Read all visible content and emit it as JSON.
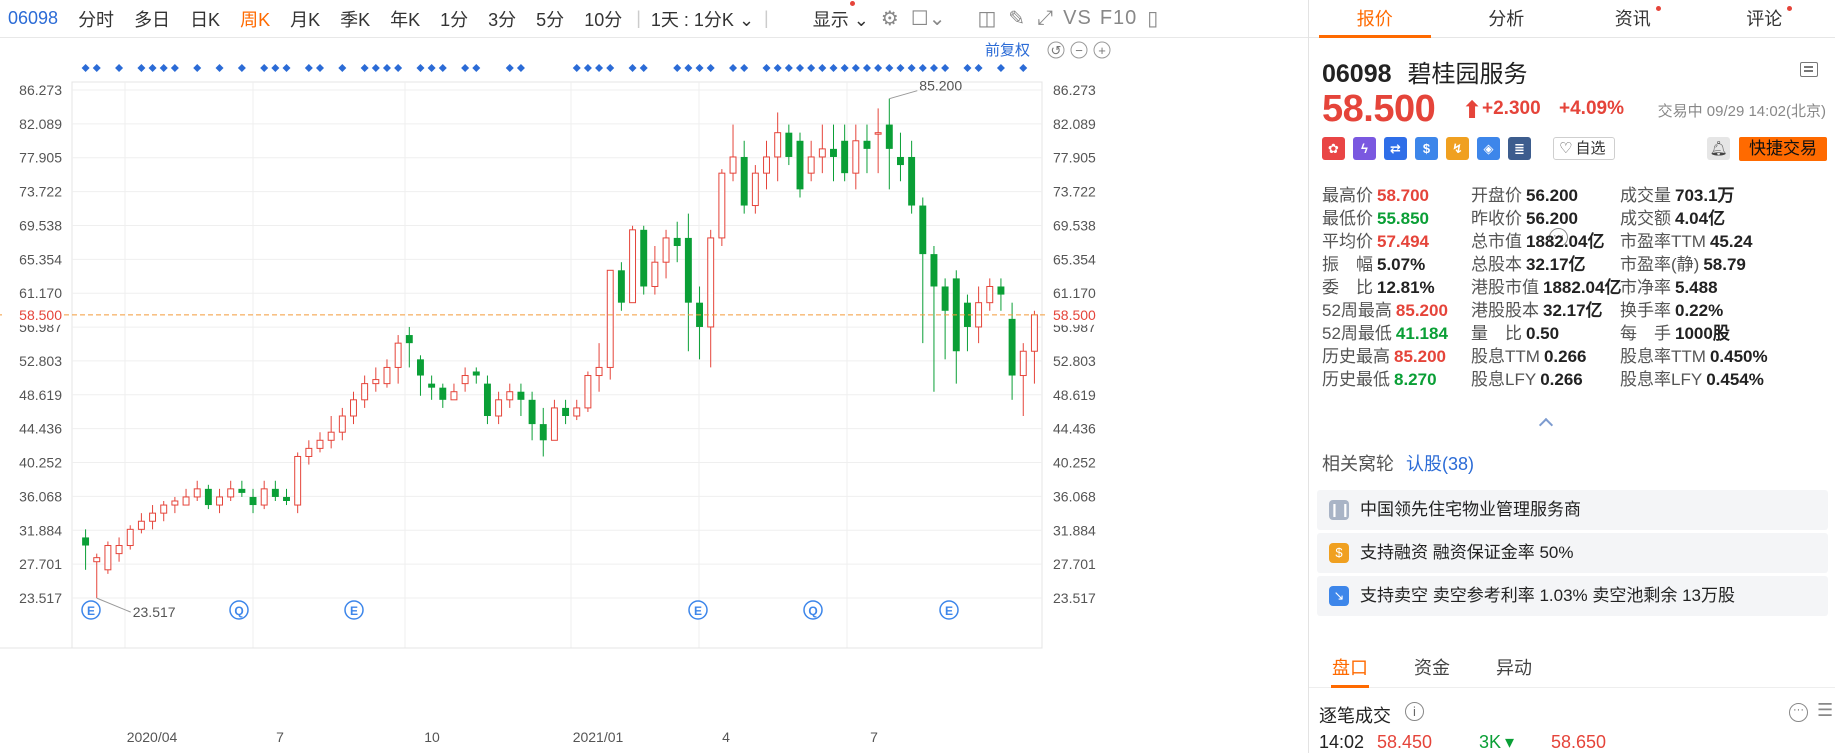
{
  "toolbar": {
    "code": "06098",
    "periods": [
      "分时",
      "多日",
      "日K",
      "周K",
      "月K",
      "季K",
      "年K",
      "1分",
      "3分",
      "5分",
      "10分"
    ],
    "active_period": "周K",
    "multi_day": "1天 : 1分K",
    "display": "显示",
    "vs": "VS",
    "f10": "F10"
  },
  "chart_controls": {
    "adjust": "前复权"
  },
  "chart_data": {
    "type": "candlestick",
    "y_ticks": [
      "86.273",
      "82.089",
      "77.905",
      "73.722",
      "69.538",
      "65.354",
      "61.170",
      "56.987",
      "52.803",
      "48.619",
      "44.436",
      "40.252",
      "36.068",
      "31.884",
      "27.701",
      "23.517"
    ],
    "ylim": [
      23.517,
      86.273
    ],
    "x_labels": [
      "2020/04",
      "7",
      "10",
      "2021/01",
      "4",
      "7"
    ],
    "current_price": "58.500",
    "high_label": "85.200",
    "low_label": "23.517",
    "events": [
      "E",
      "Q",
      "E",
      "E",
      "Q",
      "E"
    ],
    "candles": [
      [
        30,
        31,
        32,
        27,
        1
      ],
      [
        28,
        28.5,
        29,
        23.5,
        0
      ],
      [
        27,
        30,
        30.5,
        26.5,
        0
      ],
      [
        29,
        30,
        31,
        28,
        0
      ],
      [
        30,
        32,
        32.5,
        29.5,
        0
      ],
      [
        32,
        33,
        34,
        31.5,
        0
      ],
      [
        33,
        34,
        35,
        32,
        0
      ],
      [
        34,
        35,
        35.5,
        33,
        0
      ],
      [
        35,
        35.5,
        36,
        34,
        0
      ],
      [
        35,
        36,
        37,
        35,
        0
      ],
      [
        36,
        37,
        38,
        35.5,
        0
      ],
      [
        37,
        35,
        37.5,
        34.5,
        1
      ],
      [
        35,
        36,
        37,
        34,
        0
      ],
      [
        36,
        37,
        38,
        35.5,
        0
      ],
      [
        37,
        36.5,
        38,
        36,
        1
      ],
      [
        36,
        35,
        37,
        34,
        1
      ],
      [
        35,
        37,
        38,
        34.5,
        0
      ],
      [
        37,
        36,
        38,
        35.5,
        1
      ],
      [
        36,
        35.5,
        37,
        35,
        1
      ],
      [
        35,
        41,
        41.5,
        34,
        0
      ],
      [
        41,
        42,
        43,
        40,
        0
      ],
      [
        42,
        43,
        44,
        41.5,
        0
      ],
      [
        43,
        44,
        46,
        42,
        0
      ],
      [
        44,
        46,
        47,
        43,
        0
      ],
      [
        46,
        48,
        49,
        45,
        0
      ],
      [
        48,
        50,
        51,
        47,
        0
      ],
      [
        50,
        50.5,
        52,
        49,
        0
      ],
      [
        50,
        52,
        53,
        49.5,
        0
      ],
      [
        52,
        55,
        56,
        50,
        0
      ],
      [
        55,
        56,
        57,
        52,
        1
      ],
      [
        53,
        51,
        53.5,
        48.5,
        1
      ],
      [
        50,
        49.5,
        51,
        48,
        1
      ],
      [
        49.5,
        48,
        50,
        47,
        1
      ],
      [
        48,
        49,
        50,
        48,
        0
      ],
      [
        50,
        51,
        52,
        49,
        0
      ],
      [
        51,
        51.5,
        52,
        50,
        1
      ],
      [
        50,
        46,
        51,
        45,
        1
      ],
      [
        46,
        48,
        49,
        45,
        0
      ],
      [
        48,
        49,
        50,
        47,
        0
      ],
      [
        49,
        48,
        50,
        46,
        1
      ],
      [
        48,
        45,
        49,
        43,
        1
      ],
      [
        45,
        43,
        47,
        41,
        1
      ],
      [
        43,
        47,
        48,
        43,
        0
      ],
      [
        47,
        46,
        48,
        45,
        1
      ],
      [
        46,
        47,
        48,
        45.5,
        0
      ],
      [
        47,
        51,
        51.5,
        46.5,
        0
      ],
      [
        51,
        52,
        55,
        49,
        0
      ],
      [
        52,
        64,
        64,
        50.5,
        0
      ],
      [
        64,
        60,
        65,
        59,
        1
      ],
      [
        60,
        69,
        69.5,
        60,
        0
      ],
      [
        69,
        62,
        69.5,
        61,
        1
      ],
      [
        62,
        65,
        67,
        61,
        0
      ],
      [
        65,
        68,
        69,
        63,
        0
      ],
      [
        68,
        67,
        70,
        65,
        1
      ],
      [
        68,
        60,
        71,
        54,
        1
      ],
      [
        60,
        57,
        62,
        53,
        1
      ],
      [
        57,
        68,
        69,
        52,
        0
      ],
      [
        68,
        76,
        76.5,
        67,
        0
      ],
      [
        76,
        78,
        82,
        75,
        0
      ],
      [
        78,
        72,
        80,
        71,
        1
      ],
      [
        72,
        76,
        77,
        71,
        0
      ],
      [
        76,
        78,
        80,
        74,
        0
      ],
      [
        78,
        81,
        83.5,
        75,
        0
      ],
      [
        81,
        78,
        82,
        77,
        1
      ],
      [
        80,
        74,
        81,
        73,
        1
      ],
      [
        76,
        78,
        80,
        75,
        0
      ],
      [
        78,
        79,
        82,
        76,
        0
      ],
      [
        79,
        78,
        82,
        75,
        1
      ],
      [
        80,
        76,
        82,
        75,
        1
      ],
      [
        76,
        80,
        82,
        74,
        0
      ],
      [
        80,
        79,
        82,
        76,
        1
      ],
      [
        81,
        81,
        84,
        76,
        0
      ],
      [
        82,
        79,
        85.2,
        74,
        1
      ],
      [
        78,
        77,
        81,
        75,
        1
      ],
      [
        78,
        72,
        80,
        71,
        1
      ],
      [
        72,
        66,
        73,
        55,
        1
      ],
      [
        66,
        62,
        67,
        49,
        1
      ],
      [
        62,
        59,
        63,
        53,
        1
      ],
      [
        63,
        54,
        64,
        50,
        1
      ],
      [
        60,
        57,
        61,
        54,
        1
      ],
      [
        57,
        60,
        62,
        55,
        0
      ],
      [
        60,
        62,
        63,
        59,
        0
      ],
      [
        62,
        61,
        63,
        59,
        1
      ],
      [
        58,
        51,
        60,
        48,
        1
      ],
      [
        51,
        54,
        55,
        46,
        0
      ],
      [
        54,
        58.5,
        59,
        50,
        0
      ]
    ]
  },
  "panel": {
    "tabs": [
      {
        "label": "报价",
        "dot": false
      },
      {
        "label": "分析",
        "dot": false
      },
      {
        "label": "资讯",
        "dot": true
      },
      {
        "label": "评论",
        "dot": true
      }
    ],
    "active_tab": "报价",
    "code": "06098",
    "name": "碧桂园服务",
    "price": "58.500",
    "change": "+2.300",
    "change_pct": "+4.09%",
    "status": "交易中 09/29 14:02(北京)",
    "watchlist": "自选",
    "quick_trade": "快捷交易",
    "icons": [
      {
        "name": "hk-flag-icon",
        "glyph": "✿",
        "color": "#e94545"
      },
      {
        "name": "lightning-icon",
        "glyph": "ϟ",
        "color": "#7a58e0"
      },
      {
        "name": "shuffle-icon",
        "glyph": "⇄",
        "color": "#2f6ee8"
      },
      {
        "name": "dollar-icon",
        "glyph": "$",
        "color": "#3d86ea"
      },
      {
        "name": "trend-icon",
        "glyph": "↯",
        "color": "#f0a020"
      },
      {
        "name": "tag-icon",
        "glyph": "◈",
        "color": "#3d86ea"
      },
      {
        "name": "notepad-icon",
        "glyph": "≣",
        "color": "#3d5d8e"
      }
    ],
    "stats": [
      [
        {
          "label": "最高价",
          "value": "58.700",
          "color": "red"
        },
        {
          "label": "开盘价",
          "value": "56.200",
          "color": "dark"
        },
        {
          "label": "成交量",
          "value": "703.1万",
          "color": "dark"
        }
      ],
      [
        {
          "label": "最低价",
          "value": "55.850",
          "color": "green"
        },
        {
          "label": "昨收价",
          "value": "56.200",
          "color": "dark"
        },
        {
          "label": "成交额",
          "value": "4.04亿",
          "color": "dark"
        }
      ],
      [
        {
          "label": "平均价",
          "value": "57.494",
          "color": "red"
        },
        {
          "label": "总市值",
          "value": "1882.04亿",
          "color": "dark"
        },
        {
          "label": "市盈率TTM",
          "value": "45.24",
          "color": "dark"
        }
      ],
      [
        {
          "label": "振　幅",
          "value": "5.07%",
          "color": "dark"
        },
        {
          "label": "总股本",
          "value": "32.17亿",
          "color": "dark"
        },
        {
          "label": "市盈率(静)",
          "value": "58.79",
          "color": "dark"
        }
      ],
      [
        {
          "label": "委　比",
          "value": "12.81%",
          "color": "dark"
        },
        {
          "label": "港股市值",
          "value": "1882.04亿",
          "color": "dark"
        },
        {
          "label": "市净率",
          "value": "5.488",
          "color": "dark"
        }
      ],
      [
        {
          "label": "52周最高",
          "value": "85.200",
          "color": "red"
        },
        {
          "label": "港股股本",
          "value": "32.17亿",
          "color": "dark"
        },
        {
          "label": "换手率",
          "value": "0.22%",
          "color": "dark"
        }
      ],
      [
        {
          "label": "52周最低",
          "value": "41.184",
          "color": "green"
        },
        {
          "label": "量　比",
          "value": "0.50",
          "color": "dark"
        },
        {
          "label": "每　手",
          "value": "1000股",
          "color": "dark"
        }
      ],
      [
        {
          "label": "历史最高",
          "value": "85.200",
          "color": "red"
        },
        {
          "label": "股息TTM",
          "value": "0.266",
          "color": "dark"
        },
        {
          "label": "股息率TTM",
          "value": "0.450%",
          "color": "dark"
        }
      ],
      [
        {
          "label": "历史最低",
          "value": "8.270",
          "color": "green"
        },
        {
          "label": "股息LFY",
          "value": "0.266",
          "color": "dark"
        },
        {
          "label": "股息率LFY",
          "value": "0.454%",
          "color": "dark"
        }
      ]
    ],
    "related_label": "相关窝轮",
    "related_link": "认股(38)",
    "info_items": [
      {
        "icon": "book-icon",
        "glyph": "❙❙",
        "color": "#a9b4c6",
        "text": "中国领先住宅物业管理服务商"
      },
      {
        "icon": "coin-icon",
        "glyph": "$",
        "color": "#f0a020",
        "text": "支持融资 融资保证金率 50%"
      },
      {
        "icon": "short-icon",
        "glyph": "↘",
        "color": "#3d86ea",
        "text": "支持卖空 卖空参考利率 1.03% 卖空池剩余 13万股"
      }
    ],
    "bottom_tabs": [
      "盘口",
      "资金",
      "异动"
    ],
    "active_bottom_tab": "盘口",
    "trades_title": "逐笔成交",
    "trade": {
      "time": "14:02",
      "price": "58.450",
      "vol": "3K",
      "price2": "58.650"
    }
  }
}
